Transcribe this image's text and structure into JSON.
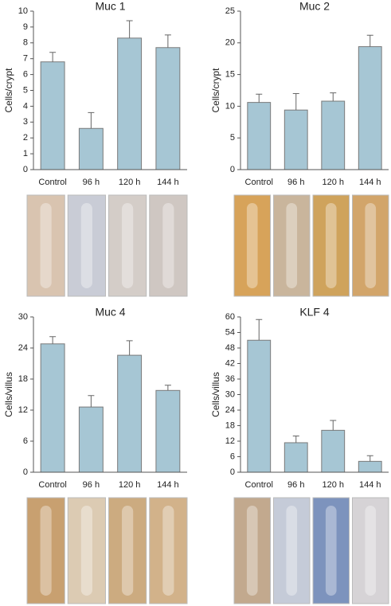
{
  "chart_data": [
    {
      "type": "bar",
      "title": "Muc 1",
      "y_label": "Cells/crypt",
      "categories": [
        "Control",
        "96 h",
        "120 h",
        "144 h"
      ],
      "values": [
        6.8,
        2.6,
        8.3,
        7.7
      ],
      "errors": [
        0.6,
        1.0,
        1.1,
        0.8
      ],
      "color": "#a6c6d4",
      "ylim": [
        0,
        10
      ],
      "yticks": [
        0,
        1,
        2,
        3,
        4,
        5,
        6,
        7,
        8,
        9,
        10
      ]
    },
    {
      "type": "bar",
      "title": "Muc 2",
      "y_label": "Cells/crypt",
      "categories": [
        "Control",
        "96 h",
        "120 h",
        "144 h"
      ],
      "values": [
        10.6,
        9.4,
        10.8,
        19.4
      ],
      "errors": [
        1.3,
        2.6,
        1.3,
        1.8
      ],
      "color": "#a6c6d4",
      "ylim": [
        0,
        25
      ],
      "yticks": [
        0,
        5,
        10,
        15,
        20,
        25
      ]
    },
    {
      "type": "bar",
      "title": "Muc 4",
      "y_label": "Cells/villus",
      "categories": [
        "Control",
        "96 h",
        "120 h",
        "144 h"
      ],
      "values": [
        24.8,
        12.6,
        22.6,
        15.8
      ],
      "errors": [
        1.4,
        2.2,
        2.8,
        1.0
      ],
      "color": "#a6c6d4",
      "ylim": [
        0,
        30
      ],
      "yticks": [
        0,
        6,
        12,
        18,
        24,
        30
      ]
    },
    {
      "type": "bar",
      "title": "KLF 4",
      "y_label": "Cells/villus",
      "categories": [
        "Control",
        "96 h",
        "120 h",
        "144 h"
      ],
      "values": [
        51,
        11.4,
        16.2,
        4.2
      ],
      "errors": [
        8,
        2.6,
        3.8,
        2.2
      ],
      "color": "#a6c6d4",
      "ylim": [
        0,
        60
      ],
      "yticks": [
        0,
        6,
        12,
        18,
        24,
        30,
        36,
        42,
        48,
        54,
        60
      ]
    }
  ]
}
